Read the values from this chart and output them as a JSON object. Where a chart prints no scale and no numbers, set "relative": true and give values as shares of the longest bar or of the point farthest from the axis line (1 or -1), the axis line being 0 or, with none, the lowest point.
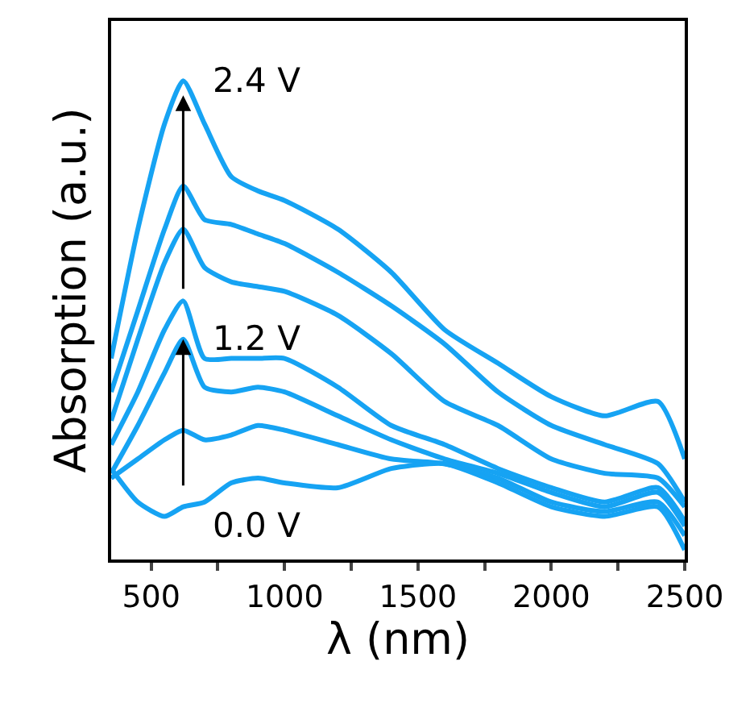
{
  "chart_data": {
    "type": "line",
    "relative": true,
    "xlabel": "λ (nm)",
    "ylabel": "Absorption (a.u.)",
    "x": [
      350,
      450,
      550,
      620,
      700,
      800,
      900,
      1000,
      1200,
      1400,
      1600,
      1800,
      2000,
      2200,
      2400,
      2500
    ],
    "xlim": [
      350,
      2500
    ],
    "xticks": [
      500,
      {
        "value": 750,
        "label": null
      },
      1000,
      {
        "value": 1250,
        "label": null
      },
      1500,
      {
        "value": 1750,
        "label": null
      },
      2000,
      {
        "value": 2250,
        "label": null
      },
      2500
    ],
    "tick_labels": "x",
    "marker": "none",
    "line_style": "solid",
    "series": [
      {
        "color": "#16a3f3",
        "values": [
          0.42,
          0.69,
          0.91,
          1.0,
          0.91,
          0.8,
          0.77,
          0.75,
          0.69,
          0.6,
          0.48,
          0.41,
          0.34,
          0.3,
          0.33,
          0.21
        ]
      },
      {
        "color": "#16a3f3",
        "values": [
          0.35,
          0.52,
          0.69,
          0.78,
          0.71,
          0.7,
          0.68,
          0.66,
          0.6,
          0.53,
          0.45,
          0.35,
          0.28,
          0.24,
          0.2,
          0.12
        ]
      },
      {
        "color": "#16a3f3",
        "values": [
          0.29,
          0.46,
          0.62,
          0.69,
          0.61,
          0.58,
          0.57,
          0.56,
          0.51,
          0.43,
          0.33,
          0.28,
          0.21,
          0.18,
          0.17,
          0.11
        ]
      },
      {
        "color": "#16a3f3",
        "values": [
          0.24,
          0.35,
          0.48,
          0.54,
          0.42,
          0.42,
          0.42,
          0.42,
          0.36,
          0.28,
          0.24,
          0.19,
          0.15,
          0.12,
          0.15,
          0.08
        ]
      },
      {
        "color": "#16a3f3",
        "values": [
          0.18,
          0.28,
          0.39,
          0.46,
          0.36,
          0.35,
          0.36,
          0.35,
          0.3,
          0.25,
          0.21,
          0.18,
          0.14,
          0.11,
          0.14,
          0.07
        ]
      },
      {
        "color": "#16a3f3",
        "values": [
          0.17,
          0.21,
          0.25,
          0.27,
          0.25,
          0.26,
          0.28,
          0.27,
          0.24,
          0.21,
          0.2,
          0.17,
          0.12,
          0.1,
          0.12,
          0.05
        ]
      },
      {
        "color": "#16a3f3",
        "values": [
          0.19,
          0.12,
          0.09,
          0.11,
          0.12,
          0.16,
          0.17,
          0.16,
          0.15,
          0.19,
          0.2,
          0.16,
          0.11,
          0.09,
          0.11,
          0.02
        ]
      }
    ],
    "annotations": [
      "0.0 V",
      "1.2 V",
      "2.4 V"
    ]
  }
}
